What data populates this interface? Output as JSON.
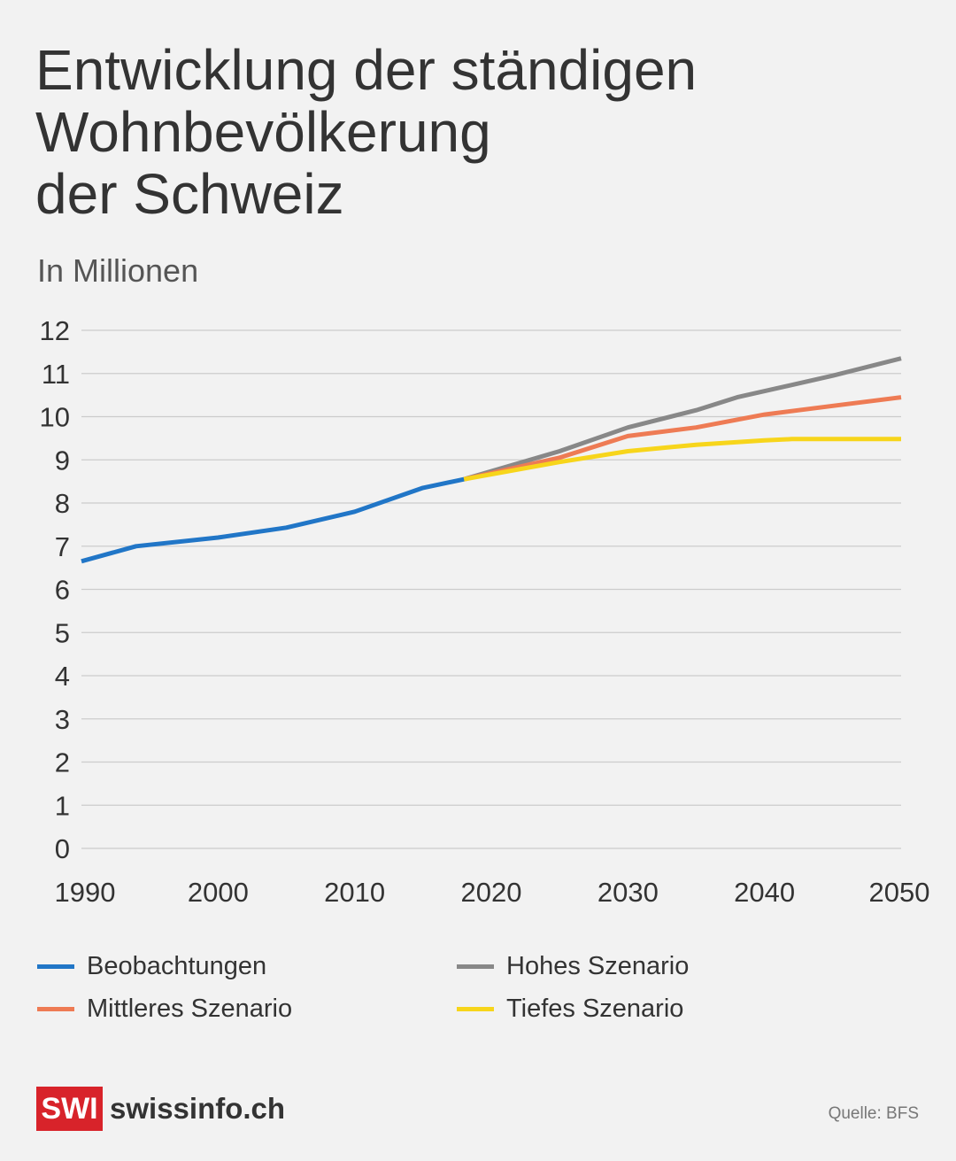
{
  "title_lines": [
    "Entwicklung der ständigen",
    "Wohnbevölkerung",
    "der Schweiz"
  ],
  "subtitle": "In Millionen",
  "colors": {
    "observed": "#2176c7",
    "high": "#888888",
    "mid": "#ee7b54",
    "low": "#f7d51b",
    "grid": "#cccccc",
    "logo": "#d8232a"
  },
  "chart_data": {
    "type": "line",
    "title": "Entwicklung der ständigen Wohnbevölkerung der Schweiz",
    "ylabel": "In Millionen",
    "xlabel": "",
    "xlim": [
      1990,
      2050
    ],
    "ylim": [
      0,
      12
    ],
    "xticks": [
      1990,
      2000,
      2010,
      2020,
      2030,
      2040,
      2050
    ],
    "yticks": [
      0,
      1,
      2,
      3,
      4,
      5,
      6,
      7,
      8,
      9,
      10,
      11,
      12
    ],
    "grid": true,
    "legend_position": "bottom",
    "series": [
      {
        "name": "Beobachtungen",
        "key": "observed",
        "x": [
          1990,
          1994,
          2000,
          2005,
          2010,
          2015,
          2018
        ],
        "y": [
          6.65,
          7.0,
          7.2,
          7.43,
          7.8,
          8.35,
          8.55
        ]
      },
      {
        "name": "Hohes Szenario",
        "key": "high",
        "x": [
          2018,
          2025,
          2030,
          2035,
          2038,
          2045,
          2050
        ],
        "y": [
          8.55,
          9.2,
          9.75,
          10.15,
          10.45,
          10.95,
          11.35
        ]
      },
      {
        "name": "Mittleres Szenario",
        "key": "mid",
        "x": [
          2018,
          2025,
          2030,
          2035,
          2040,
          2045,
          2050
        ],
        "y": [
          8.55,
          9.05,
          9.55,
          9.75,
          10.05,
          10.25,
          10.45
        ]
      },
      {
        "name": "Tiefes Szenario",
        "key": "low",
        "x": [
          2018,
          2025,
          2030,
          2035,
          2040,
          2042,
          2045,
          2050
        ],
        "y": [
          8.55,
          8.95,
          9.2,
          9.35,
          9.45,
          9.48,
          9.48,
          9.48
        ]
      }
    ]
  },
  "legend": [
    {
      "label": "Beobachtungen",
      "key": "observed"
    },
    {
      "label": "Hohes Szenario",
      "key": "high"
    },
    {
      "label": "Mittleres Szenario",
      "key": "mid"
    },
    {
      "label": "Tiefes Szenario",
      "key": "low"
    }
  ],
  "footer": {
    "logo_mark": "SWI",
    "logo_text": "swissinfo.ch",
    "source": "Quelle: BFS"
  }
}
